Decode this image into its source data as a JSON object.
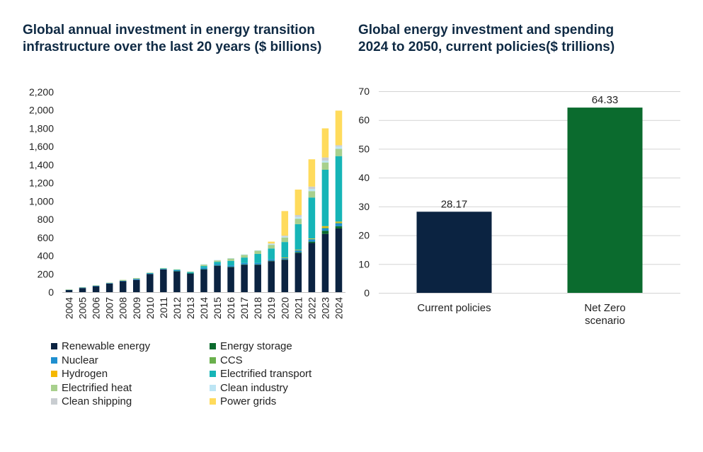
{
  "chart_data": [
    {
      "type": "bar",
      "stacked": true,
      "title": "Global annual investment in energy transition infrastructure over the last 20 years ($ billions)",
      "title_lines": [
        "Global annual investment in energy transition",
        "infrastructure over the last 20 years ($ billions)"
      ],
      "categories": [
        "2004",
        "2005",
        "2006",
        "2007",
        "2008",
        "2009",
        "2010",
        "2011",
        "2012",
        "2013",
        "2014",
        "2015",
        "2016",
        "2017",
        "2018",
        "2019",
        "2020",
        "2021",
        "2022",
        "2023",
        "2024"
      ],
      "ylim": [
        0,
        2200
      ],
      "yticks": [
        0,
        200,
        400,
        600,
        800,
        1000,
        1200,
        1400,
        1600,
        1800,
        2000,
        2200
      ],
      "ytick_labels": [
        "0",
        "200",
        "400",
        "600",
        "800",
        "1,000",
        "1,200",
        "1,400",
        "1,600",
        "1,800",
        "2,000",
        "2,200"
      ],
      "xlabel": "",
      "ylabel": "",
      "legend_position": "bottom",
      "series": [
        {
          "name": "Renewable energy",
          "color": "#0b2341",
          "values": [
            25,
            45,
            65,
            95,
            120,
            135,
            200,
            250,
            230,
            205,
            250,
            290,
            275,
            300,
            300,
            340,
            355,
            430,
            540,
            640,
            700
          ]
        },
        {
          "name": "Energy storage",
          "color": "#0b6b2e",
          "values": [
            0,
            0,
            0,
            0,
            0,
            0,
            0,
            0,
            1,
            1,
            2,
            3,
            4,
            5,
            5,
            5,
            5,
            10,
            15,
            35,
            25
          ]
        },
        {
          "name": "Nuclear",
          "color": "#1f8fcf",
          "values": [
            2,
            5,
            5,
            5,
            5,
            10,
            5,
            5,
            10,
            5,
            15,
            15,
            15,
            15,
            15,
            15,
            15,
            20,
            25,
            25,
            30
          ]
        },
        {
          "name": "CCS",
          "color": "#6ab04c",
          "values": [
            0,
            0,
            0,
            0,
            0,
            0,
            0,
            0,
            0,
            0,
            0,
            0,
            0,
            0,
            0,
            0,
            5,
            5,
            5,
            10,
            10
          ]
        },
        {
          "name": "Hydrogen",
          "color": "#f5b800",
          "values": [
            0,
            0,
            0,
            0,
            0,
            0,
            0,
            0,
            0,
            0,
            0,
            0,
            0,
            0,
            0,
            0,
            1,
            2,
            5,
            15,
            10
          ]
        },
        {
          "name": "Electrified transport",
          "color": "#16b5b7",
          "values": [
            0,
            0,
            0,
            0,
            0,
            0,
            5,
            5,
            5,
            10,
            20,
            25,
            50,
            60,
            100,
            120,
            170,
            280,
            450,
            620,
            720
          ]
        },
        {
          "name": "Electrified heat",
          "color": "#a8d08d",
          "values": [
            2,
            5,
            5,
            5,
            10,
            10,
            5,
            5,
            5,
            5,
            15,
            15,
            25,
            30,
            35,
            40,
            50,
            60,
            70,
            80,
            80
          ]
        },
        {
          "name": "Clean industry",
          "color": "#bde5f4",
          "values": [
            0,
            0,
            0,
            0,
            0,
            0,
            0,
            0,
            0,
            0,
            5,
            5,
            5,
            5,
            5,
            10,
            10,
            20,
            25,
            20,
            25
          ]
        },
        {
          "name": "Clean shipping",
          "color": "#c9cdd1",
          "values": [
            0,
            0,
            0,
            0,
            0,
            0,
            0,
            0,
            0,
            0,
            0,
            0,
            0,
            0,
            0,
            5,
            10,
            20,
            25,
            35,
            15
          ]
        },
        {
          "name": "Power grids",
          "color": "#ffdb5c",
          "values": [
            0,
            0,
            0,
            0,
            0,
            0,
            0,
            0,
            0,
            0,
            0,
            0,
            0,
            0,
            0,
            20,
            270,
            280,
            300,
            320,
            380
          ]
        }
      ]
    },
    {
      "type": "bar",
      "title": "Global energy investment and spending 2024 to 2050, current policies($ trillions)",
      "title_lines": [
        "Global energy investment and spending",
        "2024 to 2050, current policies($ trillions)"
      ],
      "categories": [
        "Current policies",
        "Net Zero scenario"
      ],
      "category_lines": [
        [
          "Current policies"
        ],
        [
          "Net Zero",
          "scenario"
        ]
      ],
      "values": [
        28.17,
        64.33
      ],
      "value_labels": [
        "28.17",
        "64.33"
      ],
      "colors": [
        "#0b2341",
        "#0b6b2e"
      ],
      "ylim": [
        0,
        70
      ],
      "yticks": [
        0,
        10,
        20,
        30,
        40,
        50,
        60,
        70
      ],
      "ytick_labels": [
        "0",
        "10",
        "20",
        "30",
        "40",
        "50",
        "60",
        "70"
      ],
      "grid": true,
      "xlabel": "",
      "ylabel": ""
    }
  ]
}
